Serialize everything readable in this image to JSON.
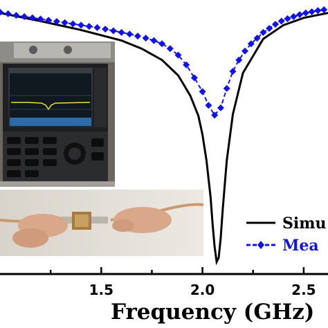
{
  "chart_data": {
    "type": "line",
    "xlabel": "Frequency (GHz)",
    "ylabel": "",
    "title": "",
    "xlim": [
      1.0,
      2.62
    ],
    "ylim": [
      -32,
      1.8
    ],
    "x_ticks": [
      1.5,
      2.0,
      2.5
    ],
    "x_tick_labels": [
      "1.5",
      "2.0",
      "2.5"
    ],
    "y_note": "y axis values not visible in crop; units assumed dB",
    "grid": false,
    "legend_position": "bottom-right",
    "series": [
      {
        "name": "Simu",
        "style": "solid",
        "color": "#000000",
        "x": [
          1.0,
          1.2,
          1.4,
          1.6,
          1.7,
          1.8,
          1.88,
          1.94,
          1.98,
          2.0,
          2.02,
          2.04,
          2.05,
          2.06,
          2.07,
          2.08,
          2.09,
          2.1,
          2.12,
          2.15,
          2.2,
          2.3,
          2.4,
          2.5,
          2.62
        ],
        "values": [
          0.2,
          -0.8,
          -1.9,
          -3.2,
          -4.2,
          -5.6,
          -7.5,
          -10.0,
          -12.5,
          -14.8,
          -18.0,
          -22.5,
          -25.8,
          -28.6,
          -30.5,
          -30.0,
          -27.6,
          -24.0,
          -18.0,
          -12.3,
          -7.2,
          -3.0,
          -1.3,
          -0.4,
          0.2
        ]
      },
      {
        "name": "Mea",
        "style": "dashed-diamond",
        "color": "#1111ee",
        "x": [
          1.0,
          1.04,
          1.08,
          1.12,
          1.16,
          1.2,
          1.24,
          1.28,
          1.32,
          1.36,
          1.4,
          1.44,
          1.48,
          1.52,
          1.56,
          1.6,
          1.64,
          1.68,
          1.72,
          1.76,
          1.8,
          1.84,
          1.88,
          1.92,
          1.96,
          2.0,
          2.03,
          2.06,
          2.09,
          2.12,
          2.15,
          2.18,
          2.21,
          2.24,
          2.27,
          2.3,
          2.33,
          2.36,
          2.39,
          2.42,
          2.45,
          2.48,
          2.51,
          2.54,
          2.57,
          2.6
        ],
        "values": [
          0.3,
          0.1,
          -0.1,
          -0.25,
          -0.4,
          -0.55,
          -0.7,
          -0.85,
          -1.0,
          -1.15,
          -1.3,
          -1.45,
          -1.6,
          -1.8,
          -2.0,
          -2.2,
          -2.4,
          -2.65,
          -2.9,
          -3.2,
          -3.6,
          -4.2,
          -5.0,
          -6.2,
          -7.8,
          -9.5,
          -11.2,
          -12.4,
          -11.5,
          -9.1,
          -7.0,
          -5.6,
          -4.5,
          -3.6,
          -2.9,
          -2.2,
          -1.7,
          -1.2,
          -0.8,
          -0.5,
          -0.25,
          0.0,
          0.2,
          0.35,
          0.5,
          0.6
        ]
      }
    ]
  },
  "inset": {
    "top_photo": "network-analyzer-photo",
    "bottom_photo": "filter-under-test-photo"
  }
}
